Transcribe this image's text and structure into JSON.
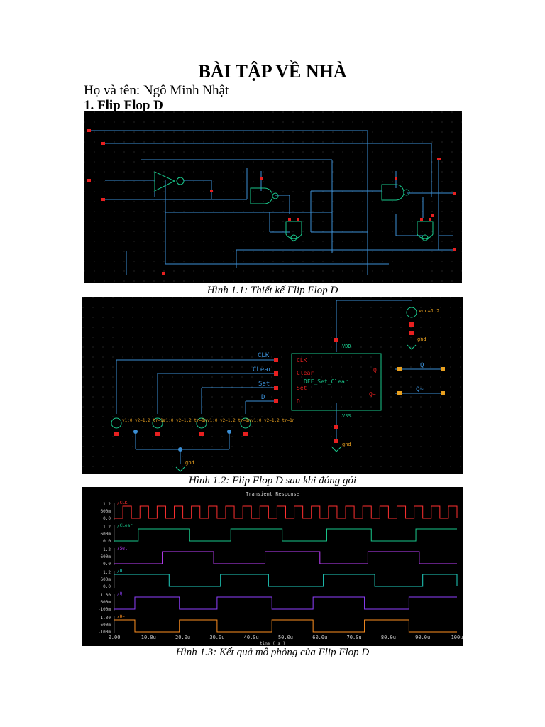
{
  "document": {
    "title": "BÀI TẬP VỀ NHÀ",
    "author": "Họ và tên: Ngô Minh Nhật",
    "section": "1. Flip Flop D"
  },
  "figures": [
    {
      "caption": "Hình 1.1: Thiết kế Flip Flop D"
    },
    {
      "caption": "Hình 1.2: Flip Flop D sau khi đóng gói",
      "labels": {
        "clk": "CLK",
        "clear": "CLear",
        "set": "Set",
        "d": "D",
        "q": "Q",
        "qbar": "Q~",
        "pin_clk": "CLK",
        "pin_clear": "Clear",
        "pin_set": "Set",
        "pin_d": "D",
        "pin_q": "Q",
        "pin_qbar": "Q~",
        "cell": "DFF_Set_Clear",
        "vdd": "VDD",
        "vss": "VSS",
        "vdc": "vdc=1.2",
        "gnd": "gnd",
        "gnd2": "gnd",
        "gnd3": "gnd",
        "src_v": "v1:0  v2=1.2  tr=1n"
      }
    },
    {
      "caption": "Hình 1.3: Kết quả mô phỏng của Flip Flop D",
      "plot_title": "Transient Response",
      "chart_data": {
        "type": "line",
        "title": "Transient Response",
        "xlabel": "time ( s )",
        "x_ticks": [
          "0.00",
          "10.0u",
          "20.0u",
          "30.0u",
          "40.0u",
          "50.0u",
          "60.0u",
          "70.0u",
          "80.0u",
          "90.0u",
          "100u"
        ],
        "series": [
          {
            "name": "/CLK",
            "color": "#ff3030",
            "ticks": [
              "1.2",
              "600m",
              "0.0"
            ]
          },
          {
            "name": "/CLear",
            "color": "#19c98c",
            "ticks": [
              "1.2",
              "600m",
              "0.0"
            ]
          },
          {
            "name": "/Set",
            "color": "#c040ff",
            "ticks": [
              "1.2",
              "600m",
              "0.0"
            ]
          },
          {
            "name": "/D",
            "color": "#20d0c0",
            "ticks": [
              "1.2",
              "600m",
              "0.0"
            ]
          },
          {
            "name": "/Q",
            "color": "#9040ff",
            "ticks": [
              "1.30",
              "600m",
              "-100m"
            ]
          },
          {
            "name": "/Q~",
            "color": "#ff9020",
            "ticks": [
              "1.30",
              "600m",
              "-100m"
            ]
          }
        ]
      }
    }
  ]
}
